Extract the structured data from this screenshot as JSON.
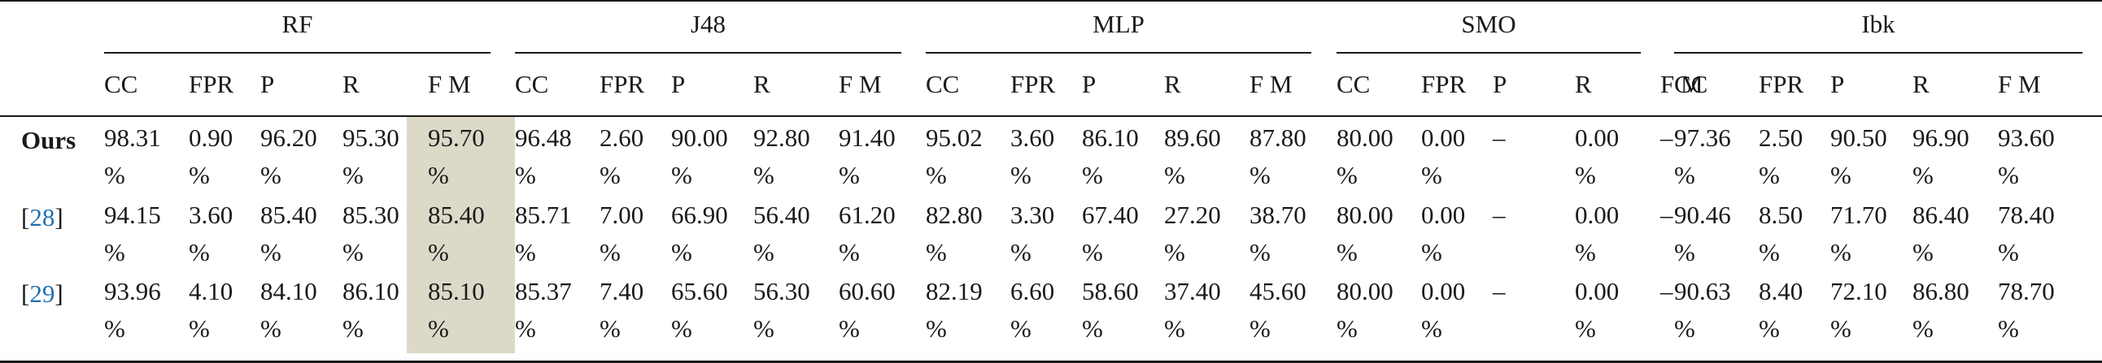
{
  "groups": [
    {
      "name": "RF",
      "highlight_col": 4
    },
    {
      "name": "J48"
    },
    {
      "name": "MLP"
    },
    {
      "name": "SMO"
    },
    {
      "name": "Ibk"
    }
  ],
  "metrics": [
    "CC",
    "FPR",
    "P",
    "R",
    "F M"
  ],
  "rows": [
    {
      "label": "Ours",
      "bold": true,
      "bracket_ref": "",
      "values": [
        [
          "98.31 %",
          "0.90 %",
          "96.20 %",
          "95.30 %",
          "95.70 %"
        ],
        [
          "96.48 %",
          "2.60 %",
          "90.00 %",
          "92.80 %",
          "91.40 %"
        ],
        [
          "95.02 %",
          "3.60 %",
          "86.10 %",
          "89.60 %",
          "87.80 %"
        ],
        [
          "80.00 %",
          "0.00 %",
          "–",
          "0.00 %",
          "–"
        ],
        [
          "97.36 %",
          "2.50 %",
          "90.50 %",
          "96.90 %",
          "93.60 %"
        ]
      ]
    },
    {
      "label": "",
      "bold": false,
      "bracket_ref": "28",
      "values": [
        [
          "94.15 %",
          "3.60 %",
          "85.40 %",
          "85.30 %",
          "85.40 %"
        ],
        [
          "85.71 %",
          "7.00 %",
          "66.90 %",
          "56.40 %",
          "61.20 %"
        ],
        [
          "82.80 %",
          "3.30 %",
          "67.40 %",
          "27.20 %",
          "38.70 %"
        ],
        [
          "80.00 %",
          "0.00 %",
          "–",
          "0.00 %",
          "–"
        ],
        [
          "90.46 %",
          "8.50 %",
          "71.70 %",
          "86.40 %",
          "78.40 %"
        ]
      ]
    },
    {
      "label": "",
      "bold": false,
      "bracket_ref": "29",
      "values": [
        [
          "93.96 %",
          "4.10 %",
          "84.10 %",
          "86.10 %",
          "85.10 %"
        ],
        [
          "85.37 %",
          "7.40 %",
          "65.60 %",
          "56.30 %",
          "60.60 %"
        ],
        [
          "82.19 %",
          "6.60 %",
          "58.60 %",
          "37.40 %",
          "45.60 %"
        ],
        [
          "80.00 %",
          "0.00 %",
          "–",
          "0.00 %",
          "–"
        ],
        [
          "90.63 %",
          "8.40 %",
          "72.10 %",
          "86.80 %",
          "78.70 %"
        ]
      ]
    }
  ],
  "colors": {
    "highlight": "#ddd9c9",
    "reference_link": "#1f6fb2",
    "text": "#1a1a1a"
  }
}
